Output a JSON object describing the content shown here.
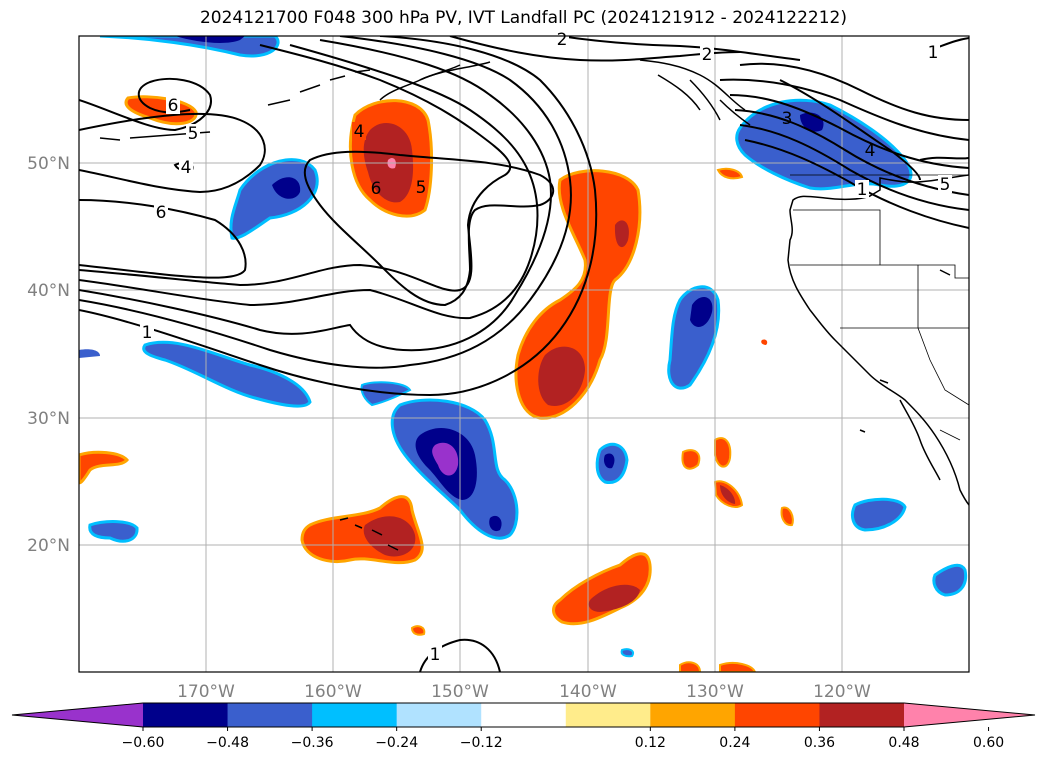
{
  "title": "2024121700 F048 300 hPa PV, IVT Landfall PC (2024121912 - 2024122212)",
  "lat_labels": [
    "50°N",
    "40°N",
    "30°N",
    "20°N"
  ],
  "lon_labels": [
    "170°W",
    "160°W",
    "150°W",
    "140°W",
    "130°W",
    "120°W"
  ],
  "contour_labels": [
    "1",
    "1",
    "1",
    "2",
    "2",
    "3",
    "4",
    "4",
    "5",
    "5",
    "6",
    "6",
    "6",
    "4",
    "5",
    "1"
  ],
  "colorbar": {
    "ticks": [
      "−0.60",
      "−0.48",
      "−0.36",
      "−0.24",
      "−0.12",
      "0.12",
      "0.24",
      "0.36",
      "0.48",
      "0.60"
    ],
    "colors": [
      "#9932cc",
      "#00008b",
      "#3a5fcd",
      "#00bfff",
      "#b0e2ff",
      "#ffffff",
      "#ffec8b",
      "#ffa500",
      "#ff4500",
      "#b22222",
      "#ff82ab"
    ]
  }
}
